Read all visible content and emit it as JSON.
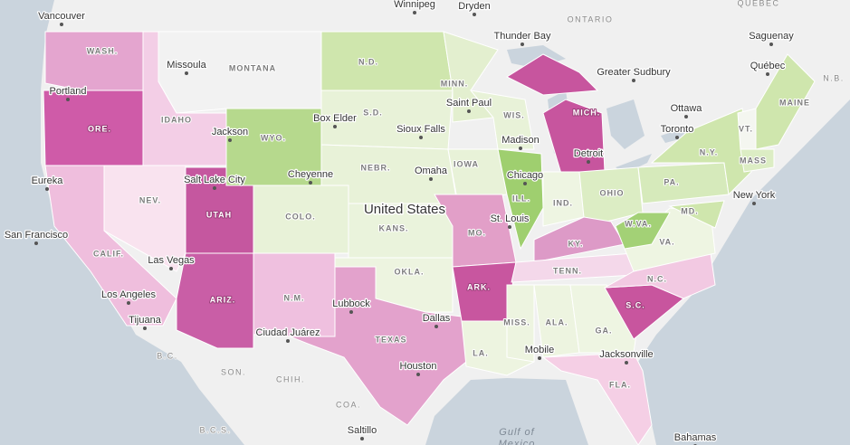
{
  "map": {
    "country": "United States",
    "water": [
      "Gulf of",
      "Mexico"
    ],
    "regions": [
      "ONTARIO",
      "QUEBEC",
      "N.B.",
      "SON.",
      "CHIH.",
      "COA.",
      "B.C.",
      "B.C.S."
    ],
    "states": [
      {
        "label": "WASH.",
        "color": "#e4a5cf"
      },
      {
        "label": "ORE.",
        "color": "#cf5ba8"
      },
      {
        "label": "CALIF.",
        "color": "#efbedd"
      },
      {
        "label": "IDAHO",
        "color": "#f3cee6"
      },
      {
        "label": "NEV.",
        "color": "#f9e3ef"
      },
      {
        "label": "MONTANA",
        "color": "#f2f2f2"
      },
      {
        "label": "WYO.",
        "color": "#b6d98d"
      },
      {
        "label": "UTAH",
        "color": "#c5579f"
      },
      {
        "label": "ARIZ.",
        "color": "#c95ea6"
      },
      {
        "label": "COLO.",
        "color": "#e8f2d8"
      },
      {
        "label": "N.M.",
        "color": "#efc0df"
      },
      {
        "label": "N.D.",
        "color": "#cfe6ad"
      },
      {
        "label": "S.D.",
        "color": "#e8f2d8"
      },
      {
        "label": "NEBR.",
        "color": "#e8f2d8"
      },
      {
        "label": "KANS.",
        "color": "#eaf3dc"
      },
      {
        "label": "OKLA.",
        "color": "#edf4e0"
      },
      {
        "label": "TEXAS",
        "color": "#e3a2cc"
      },
      {
        "label": "MINN.",
        "color": "#e3efcf"
      },
      {
        "label": "IOWA",
        "color": "#e8f2d8"
      },
      {
        "label": "MO.",
        "color": "#e29fc8"
      },
      {
        "label": "ARK.",
        "color": "#c8569f"
      },
      {
        "label": "LA.",
        "color": "#edf4e0"
      },
      {
        "label": "WIS.",
        "color": "#e8f2d8"
      },
      {
        "label": "ILL.",
        "color": "#9fcf6f"
      },
      {
        "label": "MICH.",
        "color": "#c7559e"
      },
      {
        "label": "IND.",
        "color": "#eef5e2"
      },
      {
        "label": "OHIO",
        "color": "#dcedc4"
      },
      {
        "label": "KY.",
        "color": "#dd9ac7"
      },
      {
        "label": "TENN.",
        "color": "#f4d8ea"
      },
      {
        "label": "MISS.",
        "color": "#edf4e0"
      },
      {
        "label": "ALA.",
        "color": "#edf4e0"
      },
      {
        "label": "GA.",
        "color": "#eef5e2"
      },
      {
        "label": "FLA.",
        "color": "#f5cfe5"
      },
      {
        "label": "S.C.",
        "color": "#c8559e"
      },
      {
        "label": "N.C.",
        "color": "#f2c9e2"
      },
      {
        "label": "VA.",
        "color": "#eef5e2"
      },
      {
        "label": "W.VA.",
        "color": "#a3d176"
      },
      {
        "label": "PA.",
        "color": "#d6eabb"
      },
      {
        "label": "N.Y.",
        "color": "#cfe6ad"
      },
      {
        "label": "MD.",
        "color": "#cfe6ad"
      },
      {
        "label": "VT.",
        "color": "#f4f6f0"
      },
      {
        "label": "MAINE",
        "color": "#cfe6ad"
      },
      {
        "label": "MASS",
        "color": "#dcedc4"
      }
    ],
    "places": [
      "Vancouver",
      "Winnipeg",
      "Dryden",
      "Thunder Bay",
      "Saguenay",
      "Québec",
      "Greater Sudbury",
      "Ottawa",
      "Toronto",
      "Portland",
      "Missoula",
      "Jackson",
      "Box Elder",
      "Sioux Falls",
      "Saint Paul",
      "Madison",
      "Detroit",
      "Chicago",
      "Cheyenne",
      "Omaha",
      "Salt Lake City",
      "Eureka",
      "New York",
      "St. Louis",
      "San Francisco",
      "Las Vegas",
      "Los Angeles",
      "Tijuana",
      "Lubbock",
      "Dallas",
      "Ciudad Juárez",
      "Houston",
      "Mobile",
      "Jacksonville",
      "Saltillo",
      "Bahamas"
    ]
  }
}
